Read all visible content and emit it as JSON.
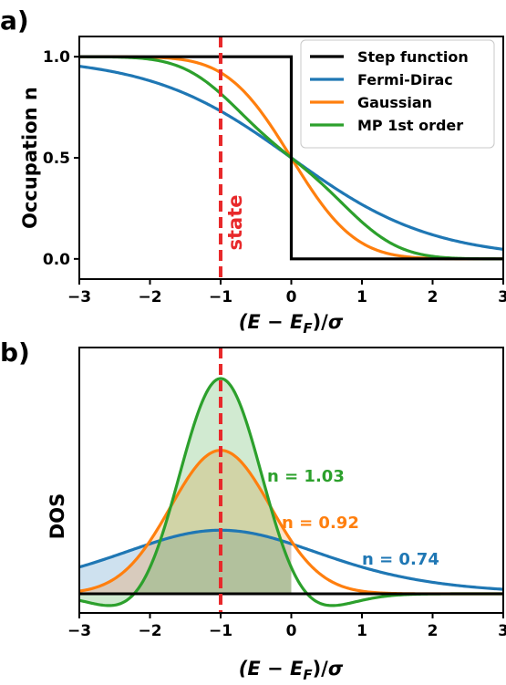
{
  "chart_data": [
    {
      "panel_label": "a)",
      "type": "line",
      "xlabel": "(E − E_F)/σ",
      "ylabel": "Occupation n",
      "xlim": [
        -3,
        3
      ],
      "ylim": [
        -0.1,
        1.1
      ],
      "x_ticks": [
        "−3",
        "−2",
        "−1",
        "0",
        "1",
        "2",
        "3"
      ],
      "y_ticks": [
        "0.0",
        "0.5",
        "1.0"
      ],
      "legend_position": "top-right",
      "series": [
        {
          "name": "Step function",
          "color": "#000000",
          "function": "step"
        },
        {
          "name": "Fermi-Dirac",
          "color": "#1f77b4",
          "function": "fermi_dirac"
        },
        {
          "name": "Gaussian",
          "color": "#ff7f0e",
          "function": "gaussian"
        },
        {
          "name": "MP 1st order",
          "color": "#2ca02c",
          "function": "methfessel_paxton_1"
        }
      ],
      "vline": {
        "x": -1,
        "label": "state",
        "color": "#e8292b"
      }
    },
    {
      "panel_label": "b)",
      "type": "area",
      "xlabel": "(E − E_F)/σ",
      "ylabel": "DOS",
      "xlim": [
        -3,
        3
      ],
      "x_ticks": [
        "−3",
        "−2",
        "−1",
        "0",
        "1",
        "2",
        "3"
      ],
      "vline": {
        "x": -1,
        "color": "#e8292b"
      },
      "annotations": [
        {
          "text": "n = 1.03",
          "color": "#2ca02c"
        },
        {
          "text": "n = 0.92",
          "color": "#ff7f0e"
        },
        {
          "text": "n = 0.74",
          "color": "#1f77b4"
        }
      ]
    }
  ]
}
